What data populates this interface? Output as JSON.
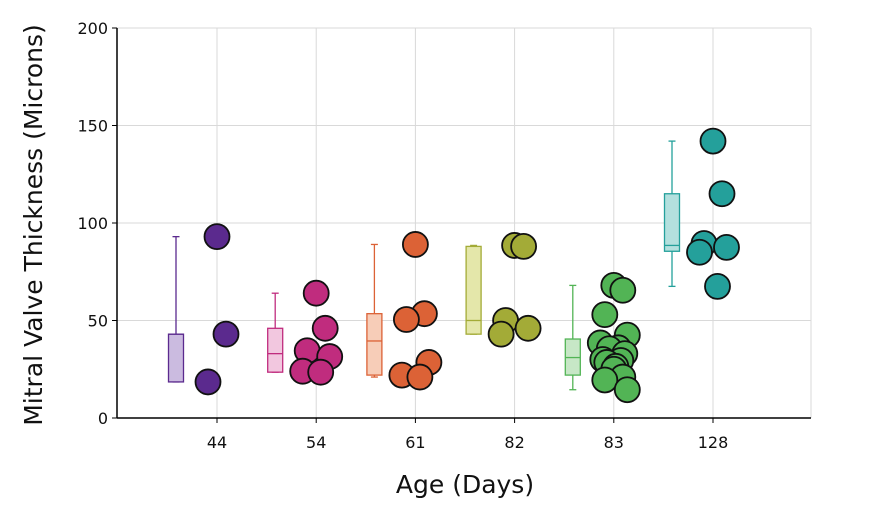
{
  "chart_data": {
    "type": "box-scatter",
    "title": "",
    "xlabel": "Age (Days)",
    "ylabel": "Mitral Valve Thickness (Microns)",
    "ylim": [
      0,
      200
    ],
    "yticks": [
      0,
      50,
      100,
      150,
      200
    ],
    "categories": [
      "44",
      "54",
      "61",
      "82",
      "83",
      "128"
    ],
    "groups": [
      {
        "label": "44",
        "color": "#5b2a8e",
        "box_fill": "#cbbbe0",
        "points": [
          18.5,
          43,
          93
        ],
        "box": {
          "min": 18.5,
          "q1": 18.5,
          "median": 43,
          "q3": 43,
          "max": 93
        }
      },
      {
        "label": "54",
        "color": "#c02c7e",
        "box_fill": "#f2c7df",
        "points": [
          23.5,
          24,
          31.5,
          34.5,
          46,
          64
        ],
        "box": {
          "min": 23.5,
          "q1": 23.5,
          "median": 33,
          "q3": 46,
          "max": 64
        }
      },
      {
        "label": "61",
        "color": "#dc6236",
        "box_fill": "#f7cdb8",
        "points": [
          21,
          22,
          28.5,
          50.5,
          53.5,
          89
        ],
        "box": {
          "min": 21,
          "q1": 22,
          "median": 39.5,
          "q3": 53.5,
          "max": 89
        }
      },
      {
        "label": "82",
        "color": "#a3ab37",
        "box_fill": "#e4e7aa",
        "points": [
          43,
          46,
          50,
          88,
          88.5
        ],
        "box": {
          "min": 43,
          "q1": 43,
          "median": 50,
          "q3": 88,
          "max": 88.5
        }
      },
      {
        "label": "83",
        "color": "#52b455",
        "box_fill": "#c7e7c6",
        "points": [
          14.5,
          19.5,
          21,
          25,
          26.5,
          28.5,
          29.5,
          30,
          33,
          35.5,
          36,
          38.5,
          42.5,
          53,
          65.5,
          68
        ],
        "box": {
          "min": 14.5,
          "q1": 22,
          "median": 31,
          "q3": 40.5,
          "max": 68
        }
      },
      {
        "label": "128",
        "color": "#24a09b",
        "box_fill": "#b3e0de",
        "points": [
          67.5,
          85,
          87.5,
          89.5,
          115,
          142
        ],
        "box": {
          "min": 67.5,
          "q1": 85.5,
          "median": 88.5,
          "q3": 115,
          "max": 142
        }
      }
    ]
  }
}
